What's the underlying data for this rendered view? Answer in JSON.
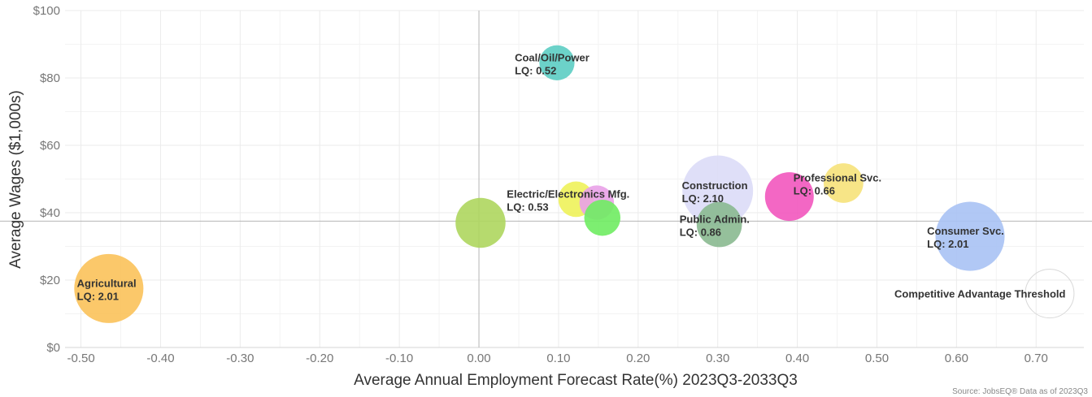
{
  "chart_data": {
    "type": "scatter",
    "subtype": "bubble",
    "title": "",
    "xlabel": "Average Annual Employment Forecast Rate(%) 2023Q3-2033Q3",
    "ylabel": "Average Wages ($1,000s)",
    "xlim": [
      -0.52,
      0.76
    ],
    "ylim": [
      0,
      100
    ],
    "x_ticks": [
      -0.5,
      -0.4,
      -0.3,
      -0.2,
      -0.1,
      0.0,
      0.1,
      0.2,
      0.3,
      0.4,
      0.5,
      0.6,
      0.7
    ],
    "x_tick_labels": [
      "-0.50",
      "-0.40",
      "-0.30",
      "-0.20",
      "-0.10",
      "0.00",
      "0.10",
      "0.20",
      "0.30",
      "0.40",
      "0.50",
      "0.60",
      "0.70"
    ],
    "y_ticks": [
      0,
      20,
      40,
      60,
      80,
      100
    ],
    "y_tick_labels": [
      "$0",
      "$20",
      "$40",
      "$60",
      "$80",
      "$100"
    ],
    "grid": true,
    "reference_lines": {
      "x": 0.0,
      "y": 37.5
    },
    "bubbles": [
      {
        "x": -0.465,
        "y": 17.5,
        "size": 2.01,
        "color": "#fbc25a",
        "label": "Agricultural",
        "lq": "LQ: 2.01",
        "label_x": -0.505
      },
      {
        "x": 0.002,
        "y": 37.0,
        "size": 1.05,
        "color": "#aed65e"
      },
      {
        "x": 0.098,
        "y": 84.5,
        "size": 0.52,
        "color": "#5ccdc3",
        "label": "Coal/Oil/Power",
        "lq": "LQ: 0.52",
        "label_x": 0.045
      },
      {
        "x": 0.122,
        "y": 44.0,
        "size": 0.53,
        "color": "#eef25a",
        "label": "Electric/Electronics Mfg.",
        "lq": "LQ: 0.53",
        "label_x": 0.035
      },
      {
        "x": 0.148,
        "y": 43.0,
        "size": 0.5,
        "color": "#e9a1e8"
      },
      {
        "x": 0.155,
        "y": 38.5,
        "size": 0.55,
        "color": "#6fec62"
      },
      {
        "x": 0.3,
        "y": 46.5,
        "size": 2.1,
        "color": "#dcdcf7",
        "label": "Construction",
        "lq": "LQ: 2.10",
        "label_x": 0.255
      },
      {
        "x": 0.302,
        "y": 36.5,
        "size": 0.86,
        "color": "#8ab990",
        "label": "Public Admin.",
        "lq": "LQ: 0.86",
        "label_x": 0.252
      },
      {
        "x": 0.39,
        "y": 44.8,
        "size": 1.0,
        "color": "#f257be"
      },
      {
        "x": 0.458,
        "y": 48.8,
        "size": 0.66,
        "color": "#f6e27a",
        "label": "Professional Svc.",
        "lq": "LQ: 0.66",
        "label_x": 0.395
      },
      {
        "x": 0.617,
        "y": 33.0,
        "size": 2.01,
        "color": "#a9c2f4",
        "label": "Consumer Svc.",
        "lq": "LQ: 2.01",
        "label_x": 0.563
      },
      {
        "x": 0.717,
        "y": 16.0,
        "size": 1.0,
        "color": "none",
        "stroke": "#d9d9d9",
        "label": "Competitive Advantage Threshold",
        "label_x": 0.522
      }
    ]
  },
  "source_note": "Source: JobsEQ® Data as of 2023Q3"
}
